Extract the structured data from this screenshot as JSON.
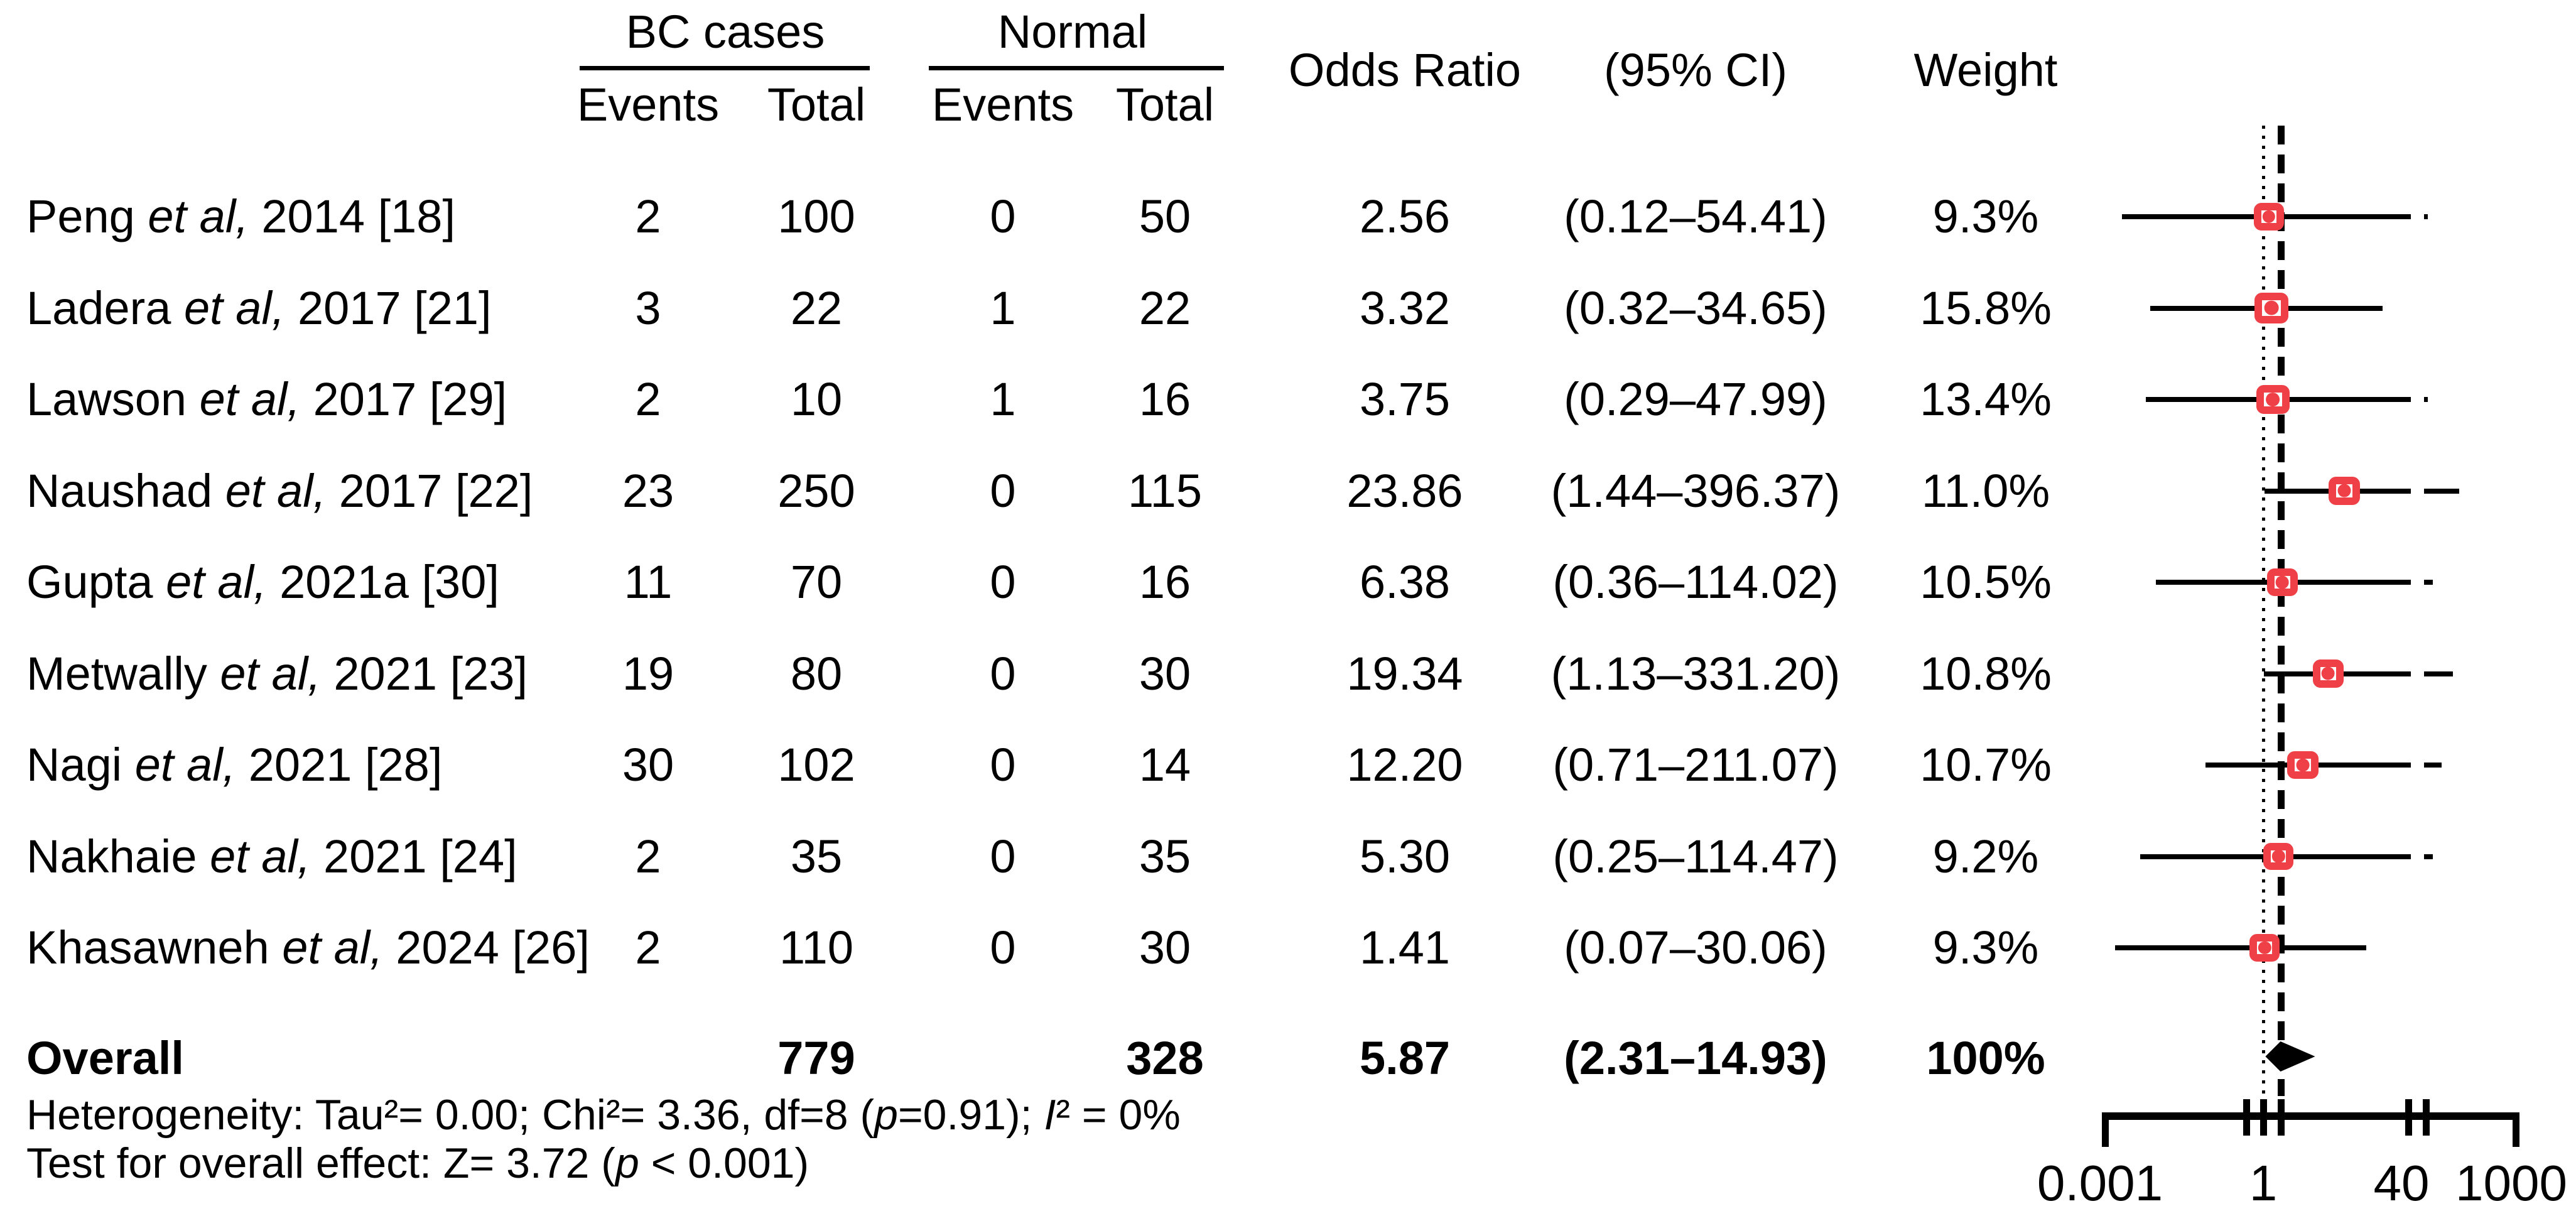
{
  "header": {
    "group_bc": "BC cases",
    "group_normal": "Normal",
    "events": "Events",
    "total": "Total",
    "odds_ratio": "Odds Ratio",
    "ci": "(95% CI)",
    "weight": "Weight"
  },
  "chart_data": {
    "type": "forest",
    "title": "",
    "x_axis": {
      "scale": "piecewise-linear-with-breaks",
      "tick_labels": [
        "0.001",
        "1",
        "40",
        "1000"
      ],
      "tick_values": [
        0.001,
        1,
        40,
        1000
      ],
      "null_line_value": 1,
      "overall_line_value": 5.87,
      "breaks_after": [
        1,
        40
      ]
    },
    "colors": {
      "marker": "#ee4046",
      "line": "#000000"
    },
    "studies": [
      {
        "label_parts": [
          {
            "t": "Peng ",
            "i": false
          },
          {
            "t": "et al,",
            "i": true
          },
          {
            "t": " 2014 [18]",
            "i": false
          }
        ],
        "bc_events": "2",
        "bc_total": "100",
        "normal_events": "0",
        "normal_total": "50",
        "or": 2.56,
        "or_text": "2.56",
        "ci_lo": 0.12,
        "ci_hi": 54.41,
        "ci_text": "(0.12–54.41)",
        "weight": 9.3,
        "weight_text": "9.3%"
      },
      {
        "label_parts": [
          {
            "t": "Ladera ",
            "i": false
          },
          {
            "t": "et al,",
            "i": true
          },
          {
            "t": " 2017 [21]",
            "i": false
          }
        ],
        "bc_events": "3",
        "bc_total": "22",
        "normal_events": "1",
        "normal_total": "22",
        "or": 3.32,
        "or_text": "3.32",
        "ci_lo": 0.32,
        "ci_hi": 34.65,
        "ci_text": "(0.32–34.65)",
        "weight": 15.8,
        "weight_text": "15.8%"
      },
      {
        "label_parts": [
          {
            "t": "Lawson ",
            "i": false
          },
          {
            "t": "et al,",
            "i": true
          },
          {
            "t": " 2017 [29]",
            "i": false
          }
        ],
        "bc_events": "2",
        "bc_total": "10",
        "normal_events": "1",
        "normal_total": "16",
        "or": 3.75,
        "or_text": "3.75",
        "ci_lo": 0.29,
        "ci_hi": 47.99,
        "ci_text": "(0.29–47.99)",
        "weight": 13.4,
        "weight_text": "13.4%"
      },
      {
        "label_parts": [
          {
            "t": "Naushad ",
            "i": false
          },
          {
            "t": "et al,",
            "i": true
          },
          {
            "t": " 2017 [22]",
            "i": false
          }
        ],
        "bc_events": "23",
        "bc_total": "250",
        "normal_events": "0",
        "normal_total": "115",
        "or": 23.86,
        "or_text": "23.86",
        "ci_lo": 1.44,
        "ci_hi": 396.37,
        "ci_text": "(1.44–396.37)",
        "weight": 11.0,
        "weight_text": "11.0%"
      },
      {
        "label_parts": [
          {
            "t": "Gupta ",
            "i": false
          },
          {
            "t": "et al,",
            "i": true
          },
          {
            "t": " 2021a [30]",
            "i": false
          }
        ],
        "bc_events": "11",
        "bc_total": "70",
        "normal_events": "0",
        "normal_total": "16",
        "or": 6.38,
        "or_text": "6.38",
        "ci_lo": 0.36,
        "ci_hi": 114.02,
        "ci_text": "(0.36–114.02)",
        "weight": 10.5,
        "weight_text": "10.5%"
      },
      {
        "label_parts": [
          {
            "t": "Metwally ",
            "i": false
          },
          {
            "t": "et al,",
            "i": true
          },
          {
            "t": " 2021 [23]",
            "i": false
          }
        ],
        "bc_events": "19",
        "bc_total": "80",
        "normal_events": "0",
        "normal_total": "30",
        "or": 19.34,
        "or_text": "19.34",
        "ci_lo": 1.13,
        "ci_hi": 331.2,
        "ci_text": "(1.13–331.20)",
        "weight": 10.8,
        "weight_text": "10.8%"
      },
      {
        "label_parts": [
          {
            "t": "Nagi ",
            "i": false
          },
          {
            "t": "et al,",
            "i": true
          },
          {
            "t": " 2021 [28]",
            "i": false
          }
        ],
        "bc_events": "30",
        "bc_total": "102",
        "normal_events": "0",
        "normal_total": "14",
        "or": 12.2,
        "or_text": "12.20",
        "ci_lo": 0.71,
        "ci_hi": 211.07,
        "ci_text": "(0.71–211.07)",
        "weight": 10.7,
        "weight_text": "10.7%"
      },
      {
        "label_parts": [
          {
            "t": "Nakhaie ",
            "i": false
          },
          {
            "t": "et al,",
            "i": true
          },
          {
            "t": " 2021 [24]",
            "i": false
          }
        ],
        "bc_events": "2",
        "bc_total": "35",
        "normal_events": "0",
        "normal_total": "35",
        "or": 5.3,
        "or_text": "5.30",
        "ci_lo": 0.25,
        "ci_hi": 114.47,
        "ci_text": "(0.25–114.47)",
        "weight": 9.2,
        "weight_text": "9.2%"
      },
      {
        "label_parts": [
          {
            "t": "Khasawneh ",
            "i": false
          },
          {
            "t": "et al,",
            "i": true
          },
          {
            "t": " 2024 [26]",
            "i": false
          }
        ],
        "bc_events": "2",
        "bc_total": "110",
        "normal_events": "0",
        "normal_total": "30",
        "or": 1.41,
        "or_text": "1.41",
        "ci_lo": 0.07,
        "ci_hi": 30.06,
        "ci_text": "(0.07–30.06)",
        "weight": 9.3,
        "weight_text": "9.3%"
      }
    ],
    "overall": {
      "label": "Overall",
      "bc_total": "779",
      "normal_total": "328",
      "or": 5.87,
      "or_text": "5.87",
      "ci_lo": 2.31,
      "ci_hi": 14.93,
      "ci_text": "(2.31–14.93)",
      "weight_text": "100%"
    },
    "footnotes": {
      "heterogeneity_parts": [
        {
          "t": "Heterogeneity: Tau²= 0.00; Chi²= 3.36, df=8 (",
          "i": false
        },
        {
          "t": "p",
          "i": true
        },
        {
          "t": "=0.91); ",
          "i": false
        },
        {
          "t": "I",
          "i": true
        },
        {
          "t": "² = 0%",
          "i": false
        }
      ],
      "overall_test_parts": [
        {
          "t": "Test for overall effect: Z= 3.72 (",
          "i": false
        },
        {
          "t": "p",
          "i": true
        },
        {
          "t": " < 0.001)",
          "i": false
        }
      ]
    }
  }
}
